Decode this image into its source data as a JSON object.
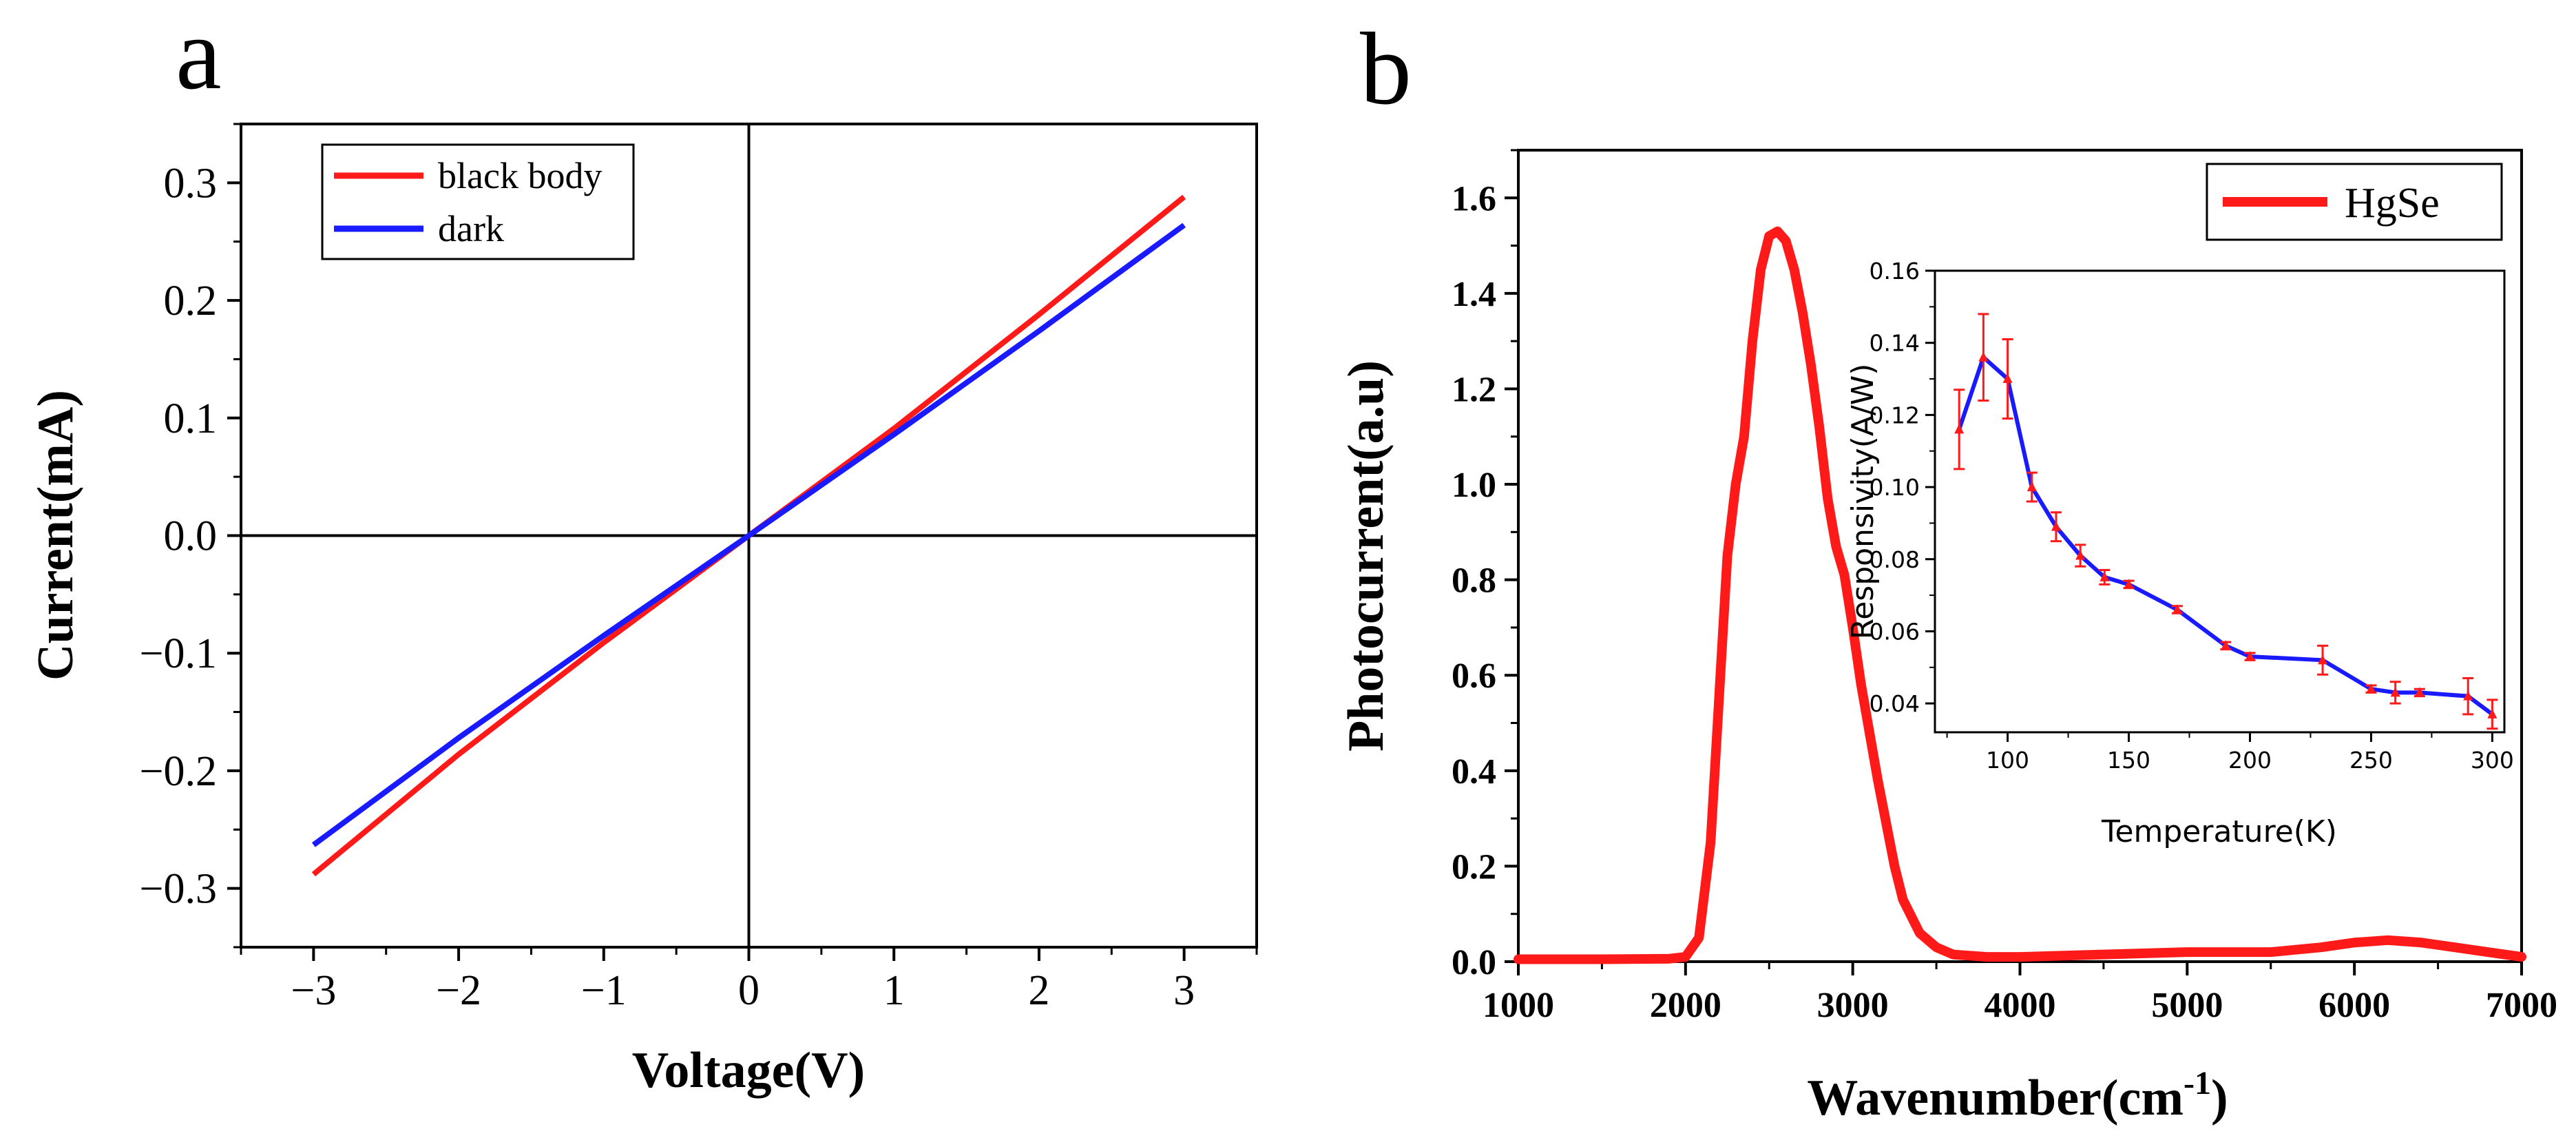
{
  "chart_data": [
    {
      "panel": "a",
      "type": "line",
      "xlabel": "Voltage(V)",
      "ylabel": "Current(mA)",
      "xlim": [
        -3.5,
        3.5
      ],
      "ylim": [
        -0.35,
        0.35
      ],
      "x_ticks": [
        -3,
        -2,
        -1,
        0,
        1,
        2,
        3
      ],
      "x_tick_labels": [
        "−3",
        "−2",
        "−1",
        "0",
        "1",
        "2",
        "3"
      ],
      "y_ticks": [
        -0.3,
        -0.2,
        -0.1,
        0.0,
        0.1,
        0.2,
        0.3
      ],
      "y_tick_labels": [
        "−0.3",
        "−0.2",
        "−0.1",
        "0.0",
        "0.1",
        "0.2",
        "0.3"
      ],
      "legend_position": "top-left",
      "series": [
        {
          "name": "black body",
          "color": "#ff1a1a",
          "x": [
            -3,
            -2,
            -1,
            0,
            1,
            2,
            3
          ],
          "y": [
            -0.288,
            -0.186,
            -0.091,
            0.0,
            0.091,
            0.188,
            0.288
          ]
        },
        {
          "name": "dark",
          "color": "#1a1aff",
          "x": [
            -3,
            -2,
            -1,
            0,
            1,
            2,
            3
          ],
          "y": [
            -0.263,
            -0.172,
            -0.085,
            0.0,
            0.086,
            0.174,
            0.264
          ]
        }
      ]
    },
    {
      "panel": "b",
      "type": "line",
      "xlabel": "Wavenumber(cm",
      "xlabel_sup": "-1",
      "xlabel_end": ")",
      "ylabel": "Photocurrent(a.u)",
      "xlim": [
        1000,
        7000
      ],
      "ylim": [
        0.0,
        1.7
      ],
      "x_ticks": [
        1000,
        2000,
        3000,
        4000,
        5000,
        6000,
        7000
      ],
      "x_tick_labels": [
        "1000",
        "2000",
        "3000",
        "4000",
        "5000",
        "6000",
        "7000"
      ],
      "y_ticks": [
        0.0,
        0.2,
        0.4,
        0.6,
        0.8,
        1.0,
        1.2,
        1.4,
        1.6
      ],
      "y_tick_labels": [
        "0.0",
        "0.2",
        "0.4",
        "0.6",
        "0.8",
        "1.0",
        "1.2",
        "1.4",
        "1.6"
      ],
      "legend_position": "top-right",
      "series": [
        {
          "name": "HgSe",
          "color": "#ff1a1a",
          "x": [
            1000,
            1500,
            1900,
            2000,
            2080,
            2150,
            2200,
            2250,
            2300,
            2350,
            2400,
            2450,
            2500,
            2550,
            2600,
            2650,
            2700,
            2750,
            2800,
            2850,
            2900,
            2950,
            3000,
            3050,
            3100,
            3150,
            3200,
            3250,
            3300,
            3400,
            3500,
            3600,
            3800,
            4000,
            4500,
            5000,
            5500,
            5800,
            6000,
            6200,
            6400,
            6600,
            6800,
            7000
          ],
          "y": [
            0.005,
            0.005,
            0.006,
            0.01,
            0.05,
            0.25,
            0.55,
            0.85,
            1.0,
            1.1,
            1.3,
            1.45,
            1.52,
            1.53,
            1.51,
            1.45,
            1.36,
            1.25,
            1.12,
            0.97,
            0.87,
            0.81,
            0.7,
            0.58,
            0.48,
            0.38,
            0.29,
            0.2,
            0.13,
            0.06,
            0.03,
            0.015,
            0.01,
            0.01,
            0.015,
            0.02,
            0.02,
            0.03,
            0.04,
            0.045,
            0.04,
            0.03,
            0.02,
            0.01
          ]
        }
      ],
      "inset": {
        "type": "line",
        "xlabel": "Temperature(K)",
        "ylabel": "Responsivity(A/W)",
        "xlim": [
          70,
          305
        ],
        "ylim": [
          0.032,
          0.16
        ],
        "x_ticks": [
          100,
          150,
          200,
          250,
          300
        ],
        "x_tick_labels": [
          "100",
          "150",
          "200",
          "250",
          "300"
        ],
        "y_ticks": [
          0.04,
          0.06,
          0.08,
          0.1,
          0.12,
          0.14,
          0.16
        ],
        "y_tick_labels": [
          "0.04",
          "0.06",
          "0.08",
          "0.10",
          "0.12",
          "0.14",
          "0.16"
        ],
        "line_color": "#1a1aff",
        "marker_color": "#ff1a1a",
        "x": [
          80,
          90,
          100,
          110,
          120,
          130,
          140,
          150,
          170,
          190,
          200,
          230,
          250,
          260,
          270,
          290,
          300
        ],
        "y": [
          0.116,
          0.136,
          0.13,
          0.1,
          0.089,
          0.081,
          0.075,
          0.073,
          0.066,
          0.056,
          0.053,
          0.052,
          0.044,
          0.043,
          0.043,
          0.042,
          0.037
        ],
        "err": [
          0.011,
          0.012,
          0.011,
          0.004,
          0.004,
          0.003,
          0.002,
          0.001,
          0.001,
          0.001,
          0.001,
          0.004,
          0.001,
          0.003,
          0.001,
          0.005,
          0.004
        ]
      }
    }
  ],
  "panel_labels": {
    "a": "a",
    "b": "b"
  }
}
